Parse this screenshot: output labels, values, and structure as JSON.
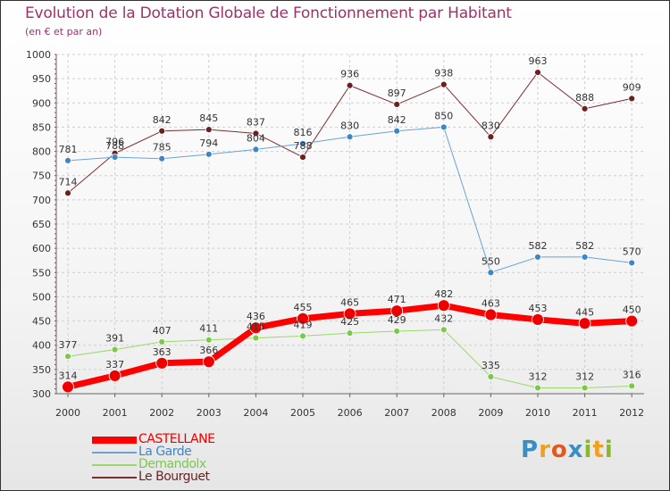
{
  "title": "Evolution de la Dotation Globale de Fonctionnement par Habitant",
  "subtitle": "(en € et par an)",
  "logo_text": "Proxiti",
  "colors": {
    "title": "#a0306a",
    "castellane": "#ff0000",
    "la_garde": "#6aa3d2",
    "demandolx": "#99d96a",
    "le_bourguet": "#7a2f2f"
  },
  "chart_data": {
    "type": "line",
    "title": "Evolution de la Dotation Globale de Fonctionnement par Habitant",
    "subtitle": "(en € et par an)",
    "xlabel": "",
    "ylabel": "",
    "ylim": [
      300,
      1000
    ],
    "yticks": [
      300,
      350,
      400,
      450,
      500,
      550,
      600,
      650,
      700,
      750,
      800,
      850,
      900,
      950,
      1000
    ],
    "x": [
      "2000",
      "2001",
      "2002",
      "2003",
      "2004",
      "2005",
      "2006",
      "2007",
      "2008",
      "2009",
      "2010",
      "2011",
      "2012"
    ],
    "grid": true,
    "legend_position": "bottom-left",
    "series": [
      {
        "name": "Le Bourguet",
        "key": "le_bourguet",
        "color": "#7a2f2f",
        "marker_fill": "#6b1f1f",
        "line_width": 1,
        "marker_radius": 3.5,
        "values": [
          714,
          796,
          842,
          845,
          837,
          788,
          936,
          897,
          938,
          830,
          963,
          888,
          909
        ]
      },
      {
        "name": "La Garde",
        "key": "la_garde",
        "color": "#6aa3d2",
        "marker_fill": "#3f86c4",
        "line_width": 1,
        "marker_radius": 3.5,
        "values": [
          781,
          788,
          785,
          794,
          804,
          816,
          830,
          842,
          850,
          550,
          582,
          582,
          570
        ]
      },
      {
        "name": "Demandolx",
        "key": "demandolx",
        "color": "#99d96a",
        "marker_fill": "#7cc84a",
        "line_width": 1,
        "marker_radius": 3.5,
        "values": [
          377,
          391,
          407,
          411,
          415,
          419,
          425,
          429,
          432,
          335,
          312,
          312,
          316
        ]
      },
      {
        "name": "CASTELLANE",
        "key": "castellane",
        "color": "#ff0000",
        "marker_fill": "#ee0000",
        "line_width": 7,
        "marker_radius": 6.5,
        "values": [
          314,
          337,
          363,
          366,
          436,
          455,
          465,
          471,
          482,
          463,
          453,
          445,
          450
        ]
      }
    ],
    "legend": [
      "CASTELLANE",
      "La Garde",
      "Demandolx",
      "Le Bourguet"
    ]
  }
}
